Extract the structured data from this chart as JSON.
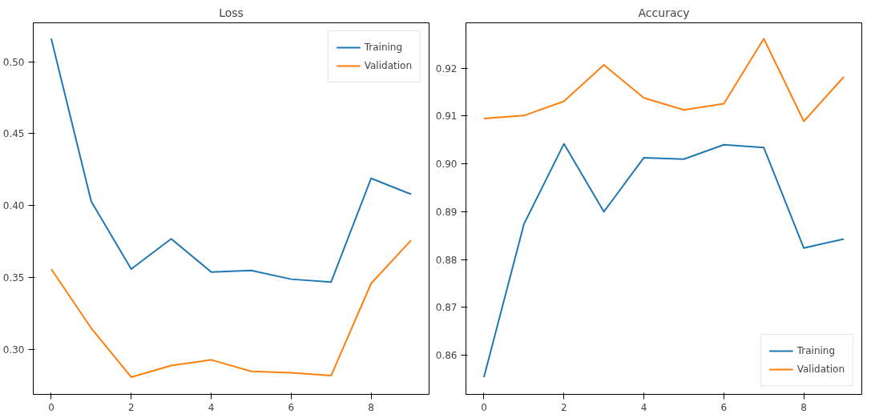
{
  "chart_data": [
    {
      "type": "line",
      "title": "Loss",
      "x": [
        0,
        1,
        2,
        3,
        4,
        5,
        6,
        7,
        8,
        9
      ],
      "series": [
        {
          "name": "Training",
          "color": "#1f77b4",
          "values": [
            0.516,
            0.403,
            0.356,
            0.377,
            0.354,
            0.355,
            0.349,
            0.347,
            0.419,
            0.408
          ]
        },
        {
          "name": "Validation",
          "color": "#ff7f0e",
          "values": [
            0.356,
            0.315,
            0.281,
            0.289,
            0.293,
            0.285,
            0.284,
            0.282,
            0.346,
            0.376
          ]
        }
      ],
      "xlim": [
        -0.45,
        9.45
      ],
      "xticks": [
        0,
        2,
        4,
        6,
        8
      ],
      "ylim": [
        0.269,
        0.527
      ],
      "yticks": [
        {
          "value": 0.3,
          "label": "0.30"
        },
        0.35,
        {
          "value": 0.4,
          "label": "0.40"
        },
        0.45,
        {
          "value": 0.5,
          "label": "0.50"
        }
      ],
      "grid": false,
      "legend": "top right",
      "marker": "none",
      "line_style": "solid"
    },
    {
      "type": "line",
      "title": "Accuracy",
      "x": [
        0,
        1,
        2,
        3,
        4,
        5,
        6,
        7,
        8,
        9
      ],
      "series": [
        {
          "name": "Training",
          "color": "#1f77b4",
          "values": [
            0.8554,
            0.8874,
            0.9042,
            0.89,
            0.9013,
            0.901,
            0.904,
            0.9034,
            0.8824,
            0.8843
          ]
        },
        {
          "name": "Validation",
          "color": "#ff7f0e",
          "values": [
            0.9095,
            0.9101,
            0.9131,
            0.9207,
            0.9138,
            0.9113,
            0.9126,
            0.9262,
            0.9089,
            0.9182
          ]
        }
      ],
      "xlim": [
        -0.45,
        9.45
      ],
      "xticks": [
        0,
        2,
        4,
        6,
        8
      ],
      "ylim": [
        0.8518,
        0.9295
      ],
      "yticks": [
        0.86,
        0.87,
        0.88,
        0.89,
        {
          "value": 0.9,
          "label": "0.90"
        },
        0.91,
        0.92
      ],
      "grid": false,
      "legend": "bottom right",
      "marker": "none",
      "line_style": "solid"
    }
  ]
}
